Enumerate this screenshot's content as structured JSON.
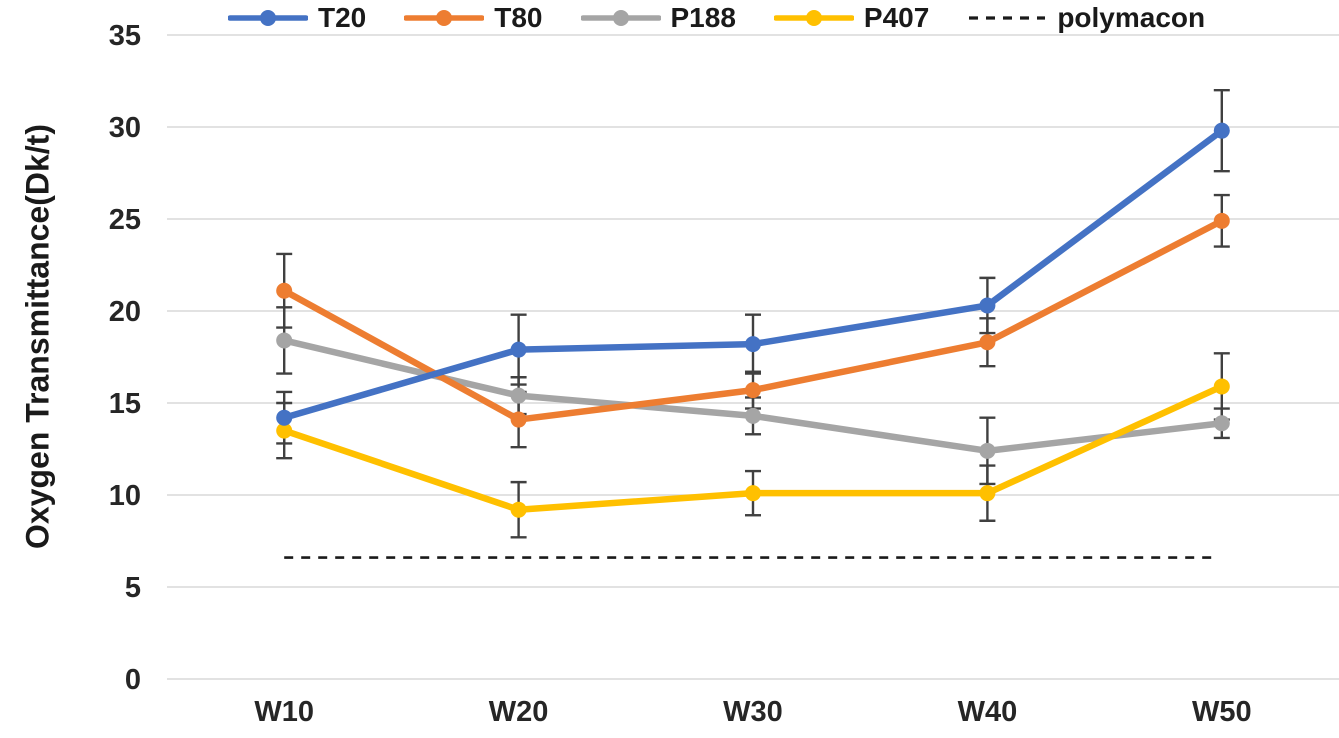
{
  "chart_data": {
    "type": "line",
    "title": "",
    "xlabel": "",
    "ylabel": "Oxygen Transmittance(Dk/t)",
    "categories": [
      "W10",
      "W20",
      "W30",
      "W40",
      "W50"
    ],
    "y_ticks": [
      0,
      5,
      10,
      15,
      20,
      25,
      30,
      35
    ],
    "ylim": [
      0,
      35
    ],
    "grid": true,
    "legend_position": "top",
    "series": [
      {
        "name": "T20",
        "color": "#4472C4",
        "values": [
          14.2,
          17.9,
          18.2,
          20.3,
          29.8
        ],
        "errors": [
          1.4,
          1.9,
          1.6,
          1.5,
          2.2
        ]
      },
      {
        "name": "T80",
        "color": "#ED7D31",
        "values": [
          21.1,
          14.1,
          15.7,
          18.3,
          24.9
        ],
        "errors": [
          2.0,
          1.5,
          1.0,
          1.3,
          1.4
        ]
      },
      {
        "name": "P188",
        "color": "#A5A5A5",
        "values": [
          18.4,
          15.4,
          14.3,
          12.4,
          13.9
        ],
        "errors": [
          1.8,
          1.0,
          1.0,
          1.8,
          0.8
        ]
      },
      {
        "name": "P407",
        "color": "#FFC000",
        "values": [
          13.5,
          9.2,
          10.1,
          10.1,
          15.9
        ],
        "errors": [
          1.5,
          1.5,
          1.2,
          1.5,
          1.8
        ]
      }
    ],
    "reference_line": {
      "name": "polymacon",
      "value": 6.6,
      "style": "dashed",
      "color": "#1a1a1a"
    },
    "grid_color": "#D9D9D9",
    "error_bar_color": "#404040",
    "tick_text_color": "#262626"
  }
}
